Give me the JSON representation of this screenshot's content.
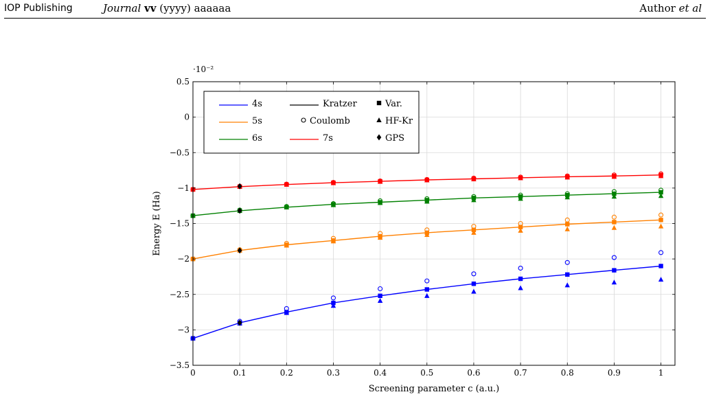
{
  "header": {
    "publisher": "IOP Publishing",
    "journal_name": "Journal",
    "journal_vol": "vv",
    "journal_rest": "(yyyy) aaaaaa",
    "author": "Author",
    "author_etal": "et al"
  },
  "chart_data": {
    "type": "line",
    "title": "",
    "xlabel": "Screening parameter c (a.u.)",
    "ylabel": "Energy E (Ha)",
    "y_scale_label": "·10⁻²",
    "xlim": [
      0,
      1.03
    ],
    "ylim": [
      -3.5,
      0.5
    ],
    "x_ticks": [
      0,
      0.1,
      0.2,
      0.3,
      0.4,
      0.5,
      0.6,
      0.7,
      0.8,
      0.9,
      1
    ],
    "x_tick_labels": [
      "0",
      "0.1",
      "0.2",
      "0.3",
      "0.4",
      "0.5",
      "0.6",
      "0.7",
      "0.8",
      "0.9",
      "1"
    ],
    "y_ticks": [
      -3.5,
      -3,
      -2.5,
      -2,
      -1.5,
      -1,
      -0.5,
      0,
      0.5
    ],
    "y_tick_labels": [
      "−3.5",
      "−3",
      "−2.5",
      "−2",
      "−1.5",
      "−1",
      "−0.5",
      "0",
      "0.5"
    ],
    "grid": true,
    "legend_position": "top-left",
    "legend": [
      {
        "label": "4s",
        "kind": "line",
        "color": "#0000ff"
      },
      {
        "label": "Kratzer",
        "kind": "line",
        "color": "#000000"
      },
      {
        "label": "Var.",
        "kind": "square",
        "color": "#000000"
      },
      {
        "label": "5s",
        "kind": "line",
        "color": "#ff8000"
      },
      {
        "label": "Coulomb",
        "kind": "circle",
        "color": "#000000"
      },
      {
        "label": "HF-Kr",
        "kind": "triangle",
        "color": "#000000"
      },
      {
        "label": "6s",
        "kind": "line",
        "color": "#008000"
      },
      {
        "label": "7s",
        "kind": "line",
        "color": "#ff0000"
      },
      {
        "label": "GPS",
        "kind": "diamond",
        "color": "#000000"
      }
    ],
    "x": [
      0,
      0.1,
      0.2,
      0.3,
      0.4,
      0.5,
      0.6,
      0.7,
      0.8,
      0.9,
      1
    ],
    "series": [
      {
        "name": "4s",
        "color": "#0000ff",
        "kratzer": [
          -3.12,
          -2.9,
          -2.75,
          -2.62,
          -2.52,
          -2.43,
          -2.35,
          -2.28,
          -2.22,
          -2.16,
          -2.1
        ],
        "var": [
          -3.12,
          -2.9,
          -2.75,
          -2.62,
          -2.52,
          -2.43,
          -2.35,
          -2.28,
          -2.22,
          -2.16,
          -2.1
        ],
        "coulomb": [
          -3.12,
          -2.88,
          -2.7,
          -2.55,
          -2.42,
          -2.31,
          -2.21,
          -2.13,
          -2.05,
          -1.98,
          -1.91
        ],
        "hfkr": [
          -3.12,
          -2.91,
          -2.76,
          -2.66,
          -2.59,
          -2.52,
          -2.46,
          -2.41,
          -2.37,
          -2.33,
          -2.29
        ]
      },
      {
        "name": "5s",
        "color": "#ff8000",
        "kratzer": [
          -2.0,
          -1.88,
          -1.8,
          -1.74,
          -1.68,
          -1.63,
          -1.59,
          -1.55,
          -1.51,
          -1.48,
          -1.45
        ],
        "var": [
          -2.0,
          -1.88,
          -1.8,
          -1.74,
          -1.68,
          -1.63,
          -1.59,
          -1.55,
          -1.51,
          -1.48,
          -1.45
        ],
        "coulomb": [
          -2.0,
          -1.87,
          -1.78,
          -1.71,
          -1.64,
          -1.59,
          -1.54,
          -1.5,
          -1.45,
          -1.41,
          -1.38
        ],
        "hfkr": [
          -2.0,
          -1.88,
          -1.81,
          -1.75,
          -1.7,
          -1.66,
          -1.63,
          -1.6,
          -1.58,
          -1.56,
          -1.54
        ]
      },
      {
        "name": "6s",
        "color": "#008000",
        "kratzer": [
          -1.39,
          -1.32,
          -1.27,
          -1.23,
          -1.2,
          -1.17,
          -1.14,
          -1.12,
          -1.1,
          -1.08,
          -1.06
        ],
        "var": [
          -1.39,
          -1.32,
          -1.27,
          -1.23,
          -1.2,
          -1.17,
          -1.14,
          -1.12,
          -1.1,
          -1.08,
          -1.06
        ],
        "coulomb": [
          -1.39,
          -1.31,
          -1.26,
          -1.22,
          -1.18,
          -1.15,
          -1.12,
          -1.1,
          -1.08,
          -1.05,
          -1.03
        ],
        "hfkr": [
          -1.39,
          -1.32,
          -1.27,
          -1.24,
          -1.21,
          -1.19,
          -1.17,
          -1.15,
          -1.13,
          -1.12,
          -1.11
        ]
      },
      {
        "name": "7s",
        "color": "#ff0000",
        "kratzer": [
          -1.02,
          -0.98,
          -0.95,
          -0.925,
          -0.905,
          -0.885,
          -0.87,
          -0.855,
          -0.84,
          -0.83,
          -0.815
        ],
        "var": [
          -1.02,
          -0.98,
          -0.95,
          -0.925,
          -0.905,
          -0.885,
          -0.87,
          -0.855,
          -0.84,
          -0.83,
          -0.815
        ],
        "coulomb": [
          -1.02,
          -0.975,
          -0.945,
          -0.92,
          -0.9,
          -0.88,
          -0.86,
          -0.845,
          -0.83,
          -0.815,
          -0.8
        ],
        "hfkr": [
          -1.02,
          -0.98,
          -0.95,
          -0.93,
          -0.91,
          -0.89,
          -0.875,
          -0.86,
          -0.85,
          -0.84,
          -0.83
        ]
      }
    ],
    "gps": [
      {
        "x": 0.1,
        "y": -2.9
      },
      {
        "x": 0.1,
        "y": -1.88
      },
      {
        "x": 0.1,
        "y": -1.32
      },
      {
        "x": 0.1,
        "y": -0.975
      }
    ]
  }
}
